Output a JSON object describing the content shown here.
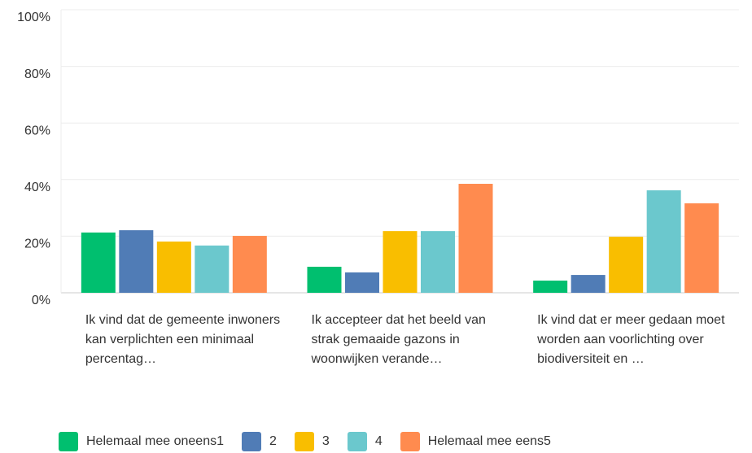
{
  "chart_data": {
    "type": "bar",
    "categories": [
      "Ik vind dat de gemeente inwoners kan verplichten een minimaal percentag…",
      "Ik accepteer dat het beeld van strak gemaaide gazons in woonwijken verande…",
      "Ik vind dat er meer gedaan moet worden aan voorlichting over biodiversiteit en …"
    ],
    "series": [
      {
        "name": "Helemaal mee oneens1",
        "color": "#00bf6f",
        "values": [
          21.3,
          9.2,
          4.3
        ]
      },
      {
        "name": "2",
        "color": "#507cb6",
        "values": [
          22.1,
          7.2,
          6.3
        ]
      },
      {
        "name": "3",
        "color": "#f9be00",
        "values": [
          18.1,
          21.8,
          19.8
        ]
      },
      {
        "name": "4",
        "color": "#6bc8cd",
        "values": [
          16.7,
          21.8,
          36.2
        ]
      },
      {
        "name": "Helemaal mee eens5",
        "color": "#ff8b4f",
        "values": [
          20.1,
          38.5,
          31.6
        ]
      }
    ],
    "ylim": [
      0,
      100
    ],
    "yticks": [
      {
        "value": 0,
        "label": "0%"
      },
      {
        "value": 20,
        "label": "20%"
      },
      {
        "value": 40,
        "label": "40%"
      },
      {
        "value": 60,
        "label": "60%"
      },
      {
        "value": 80,
        "label": "80%"
      },
      {
        "value": 100,
        "label": "100%"
      }
    ],
    "grid": true
  }
}
